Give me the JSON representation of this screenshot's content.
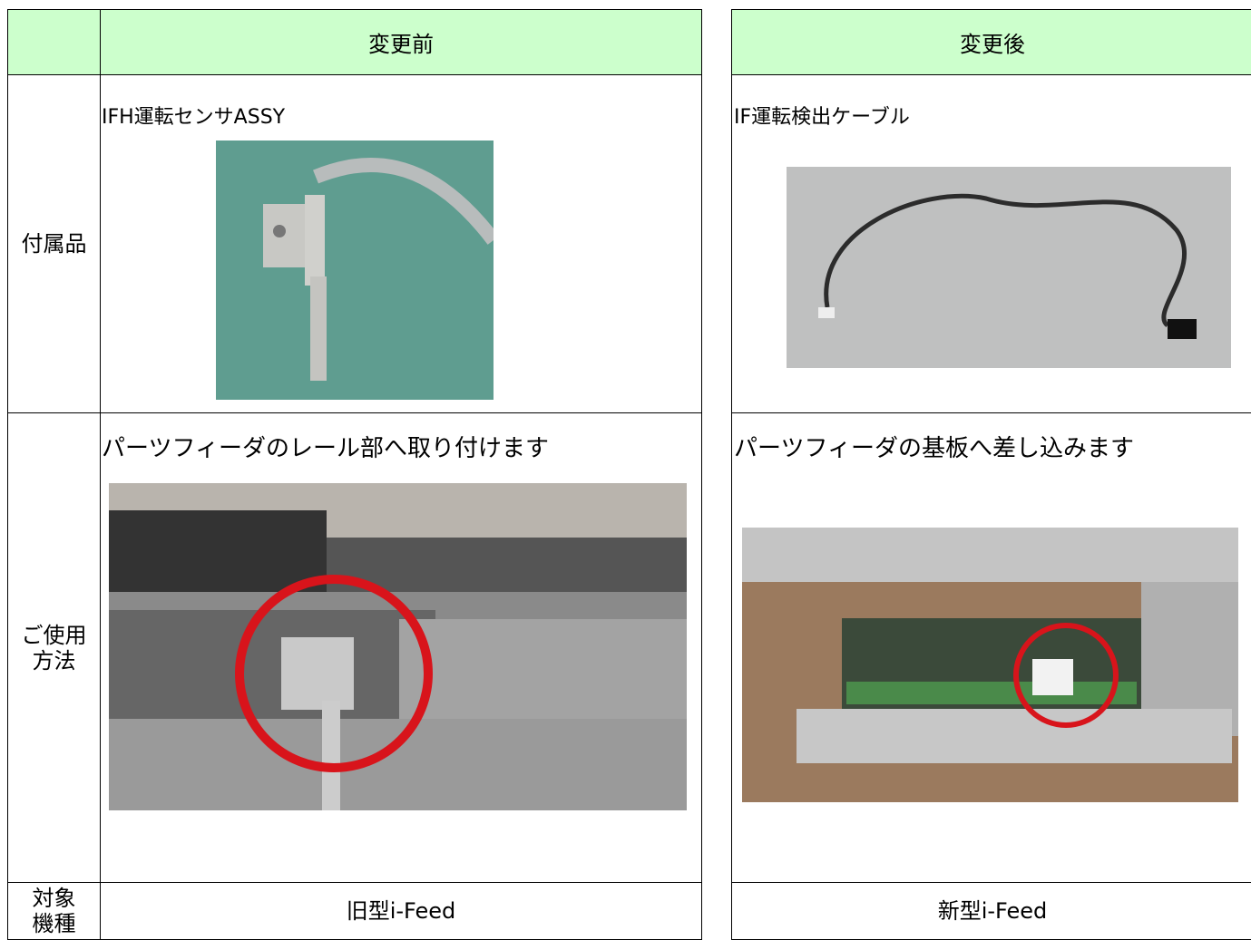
{
  "table": {
    "header": {
      "before": "変更前",
      "after": "変更後"
    },
    "rows": [
      {
        "label": [
          "付属品"
        ],
        "before": "IFH運転センサASSY",
        "after": "IF運転検出ケーブル"
      },
      {
        "label": [
          "ご使用",
          "方法"
        ],
        "before": "パーツフィーダのレール部へ取り付けます",
        "after": "パーツフィーダの基板へ差し込みます"
      },
      {
        "label": [
          "対象",
          "機種"
        ],
        "before": "旧型i-Feed",
        "after": "新型i-Feed"
      }
    ]
  }
}
